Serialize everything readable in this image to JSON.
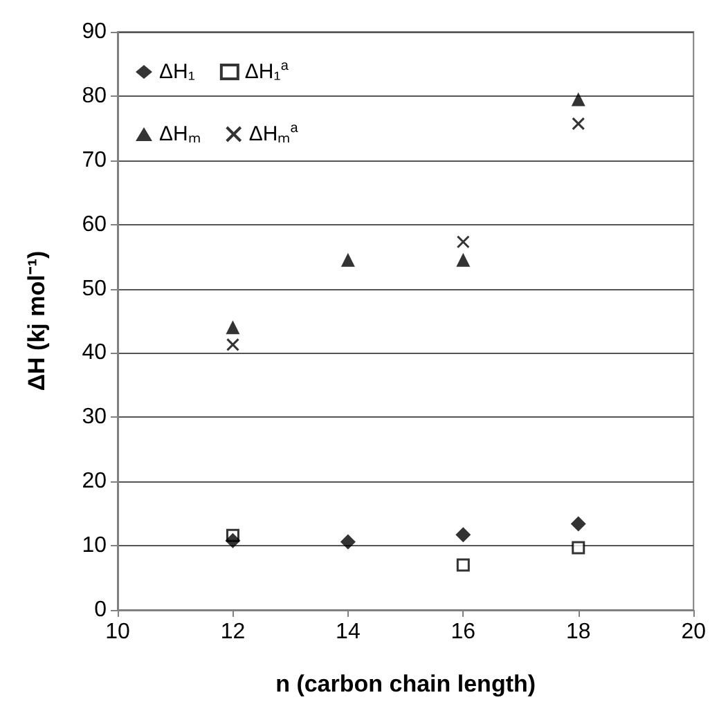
{
  "chart_data": {
    "type": "scatter",
    "xlabel": "n (carbon chain length)",
    "ylabel": "ΔH (kj mol⁻¹)",
    "x": [
      12,
      14,
      16,
      18
    ],
    "xlim": [
      10,
      20
    ],
    "xticks": [
      10,
      12,
      14,
      16,
      18,
      20
    ],
    "ylim": [
      0,
      90
    ],
    "yticks": [
      0,
      10,
      20,
      30,
      40,
      50,
      60,
      70,
      80,
      90
    ],
    "grid": "y",
    "legend": "top left",
    "series": [
      {
        "name": "ΔH₁",
        "color": "#000000",
        "marker": "diamond",
        "values": [
          10.8,
          10.6,
          11.7,
          13.4
        ]
      },
      {
        "name": "ΔH₁$^{a}$",
        "color": "#000000",
        "marker": "square",
        "values": [
          11.6,
          null,
          7.0,
          9.7
        ]
      },
      {
        "name": "ΔHₘ",
        "color": "#000000",
        "marker": "triangle",
        "values": [
          44.0,
          54.5,
          54.5,
          79.5
        ]
      },
      {
        "name": "ΔHₘ$^{a}$",
        "color": "#000000",
        "marker": "cross",
        "values": [
          41.3,
          null,
          57.3,
          75.7
        ]
      }
    ]
  }
}
